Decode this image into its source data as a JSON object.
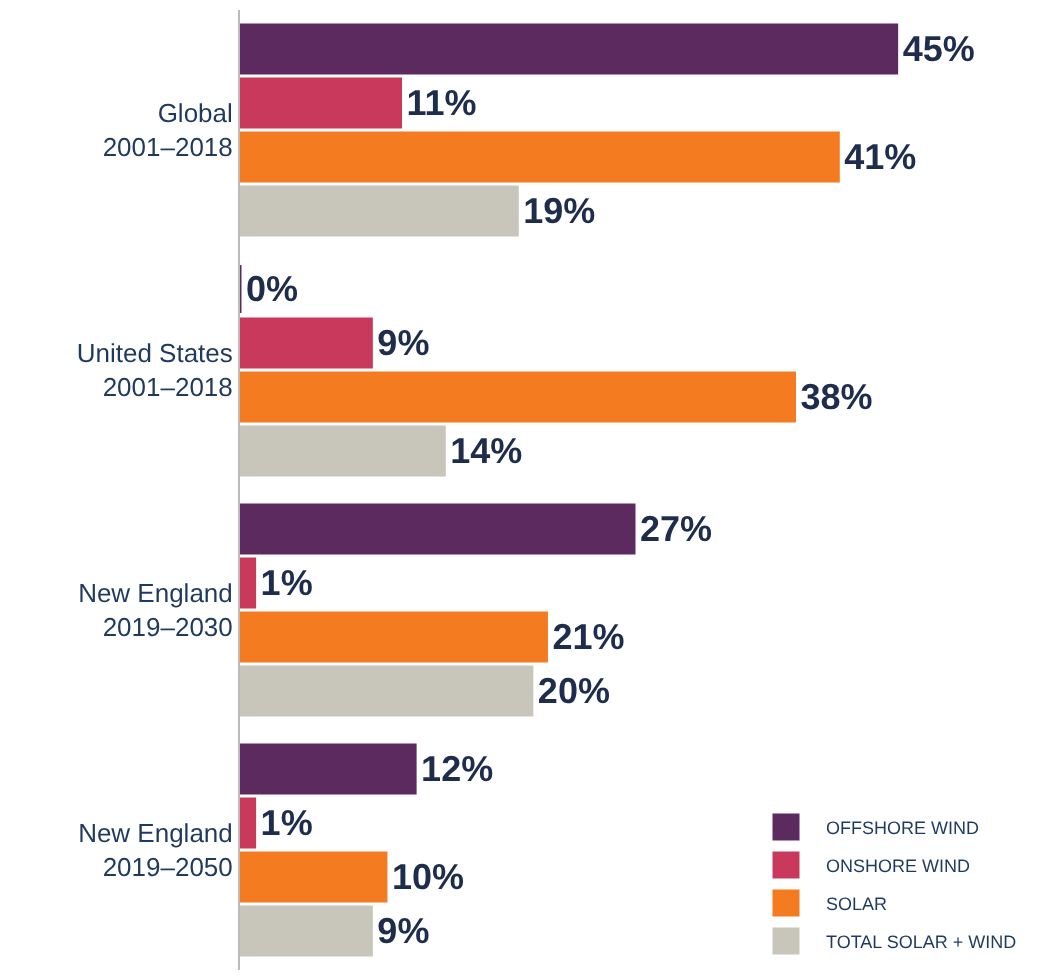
{
  "chart_data": {
    "type": "bar",
    "orientation": "horizontal",
    "categories": [
      "Global\n2001–2018",
      "United States\n2001–2018",
      "New England\n2019–2030",
      "New England\n2019–2050"
    ],
    "series": [
      {
        "name": "OFFSHORE WIND",
        "color": "#5c2a5f",
        "values": [
          45,
          0,
          27,
          12
        ],
        "value_labels": [
          "45%",
          "0%",
          "27%",
          "12%"
        ]
      },
      {
        "name": "ONSHORE WIND",
        "color": "#c9395c",
        "values": [
          11,
          9,
          1,
          1
        ],
        "value_labels": [
          "11%",
          "9%",
          "1%",
          "1%"
        ]
      },
      {
        "name": "SOLAR",
        "color": "#f47b20",
        "values": [
          41,
          38,
          21,
          10
        ],
        "value_labels": [
          "41%",
          "38%",
          "21%",
          "10%"
        ]
      },
      {
        "name": "TOTAL SOLAR + WIND",
        "color": "#c8c6bb",
        "values": [
          19,
          14,
          20,
          9
        ],
        "value_labels": [
          "19%",
          "14%",
          "20%",
          "9%"
        ]
      }
    ],
    "legend": "bottom right"
  }
}
